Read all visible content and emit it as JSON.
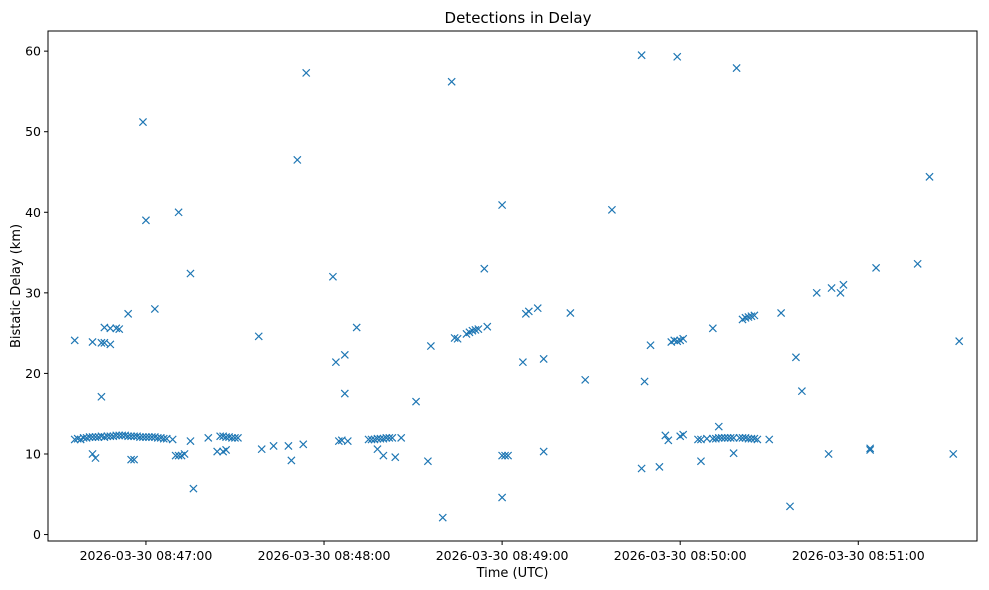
{
  "chart_data": {
    "type": "scatter",
    "title": "Detections in Delay",
    "xlabel": "Time (UTC)",
    "ylabel": "Bistatic Delay (km)",
    "x_tick_labels": [
      "2026-03-30 08:47:00",
      "2026-03-30 08:48:00",
      "2026-03-30 08:49:00",
      "2026-03-30 08:50:00",
      "2026-03-30 08:51:00"
    ],
    "y_ticks": [
      0,
      10,
      20,
      30,
      40,
      50,
      60
    ],
    "xlim": [
      "2026-03-30 08:46:27",
      "2026-03-30 08:51:40"
    ],
    "ylim": [
      -0.8,
      62.5
    ],
    "marker": "x",
    "color": "#1f77b4",
    "grid": false,
    "series": [
      {
        "points": [
          [
            "2026-03-30 08:46:36",
            24.1
          ],
          [
            "2026-03-30 08:46:36",
            11.8
          ],
          [
            "2026-03-30 08:46:37",
            11.9
          ],
          [
            "2026-03-30 08:46:38",
            11.8
          ],
          [
            "2026-03-30 08:46:39",
            12.0
          ],
          [
            "2026-03-30 08:46:40",
            12.0
          ],
          [
            "2026-03-30 08:46:41",
            12.1
          ],
          [
            "2026-03-30 08:46:42",
            23.9
          ],
          [
            "2026-03-30 08:46:42",
            10.0
          ],
          [
            "2026-03-30 08:46:42",
            12.1
          ],
          [
            "2026-03-30 08:46:43",
            9.5
          ],
          [
            "2026-03-30 08:46:43",
            12.1
          ],
          [
            "2026-03-30 08:46:44",
            12.1
          ],
          [
            "2026-03-30 08:46:45",
            23.8
          ],
          [
            "2026-03-30 08:46:45",
            17.1
          ],
          [
            "2026-03-30 08:46:45",
            12.2
          ],
          [
            "2026-03-30 08:46:46",
            25.7
          ],
          [
            "2026-03-30 08:46:46",
            23.8
          ],
          [
            "2026-03-30 08:46:46",
            12.1
          ],
          [
            "2026-03-30 08:46:47",
            12.2
          ],
          [
            "2026-03-30 08:46:48",
            25.6
          ],
          [
            "2026-03-30 08:46:48",
            23.6
          ],
          [
            "2026-03-30 08:46:48",
            12.2
          ],
          [
            "2026-03-30 08:46:49",
            12.2
          ],
          [
            "2026-03-30 08:46:50",
            25.6
          ],
          [
            "2026-03-30 08:46:50",
            12.3
          ],
          [
            "2026-03-30 08:46:51",
            25.5
          ],
          [
            "2026-03-30 08:46:51",
            12.3
          ],
          [
            "2026-03-30 08:46:52",
            12.3
          ],
          [
            "2026-03-30 08:46:53",
            12.3
          ],
          [
            "2026-03-30 08:46:54",
            27.4
          ],
          [
            "2026-03-30 08:46:54",
            12.2
          ],
          [
            "2026-03-30 08:46:55",
            9.3
          ],
          [
            "2026-03-30 08:46:55",
            12.2
          ],
          [
            "2026-03-30 08:46:56",
            9.3
          ],
          [
            "2026-03-30 08:46:56",
            12.2
          ],
          [
            "2026-03-30 08:46:57",
            12.2
          ],
          [
            "2026-03-30 08:46:58",
            12.1
          ],
          [
            "2026-03-30 08:46:59",
            51.2
          ],
          [
            "2026-03-30 08:46:59",
            12.1
          ],
          [
            "2026-03-30 08:47:00",
            39.0
          ],
          [
            "2026-03-30 08:47:00",
            12.1
          ],
          [
            "2026-03-30 08:47:01",
            12.1
          ],
          [
            "2026-03-30 08:47:02",
            12.1
          ],
          [
            "2026-03-30 08:47:03",
            28.0
          ],
          [
            "2026-03-30 08:47:03",
            12.1
          ],
          [
            "2026-03-30 08:47:04",
            12.0
          ],
          [
            "2026-03-30 08:47:05",
            12.0
          ],
          [
            "2026-03-30 08:47:06",
            11.9
          ],
          [
            "2026-03-30 08:47:07",
            11.9
          ],
          [
            "2026-03-30 08:47:09",
            11.8
          ],
          [
            "2026-03-30 08:47:10",
            9.8
          ],
          [
            "2026-03-30 08:47:11",
            40.0
          ],
          [
            "2026-03-30 08:47:11",
            9.8
          ],
          [
            "2026-03-30 08:47:12",
            9.8
          ],
          [
            "2026-03-30 08:47:13",
            10.0
          ],
          [
            "2026-03-30 08:47:15",
            32.4
          ],
          [
            "2026-03-30 08:47:15",
            11.6
          ],
          [
            "2026-03-30 08:47:16",
            5.7
          ],
          [
            "2026-03-30 08:47:21",
            12.0
          ],
          [
            "2026-03-30 08:47:24",
            10.3
          ],
          [
            "2026-03-30 08:47:25",
            12.2
          ],
          [
            "2026-03-30 08:47:26",
            10.3
          ],
          [
            "2026-03-30 08:47:26",
            12.2
          ],
          [
            "2026-03-30 08:47:27",
            10.5
          ],
          [
            "2026-03-30 08:47:27",
            12.1
          ],
          [
            "2026-03-30 08:47:28",
            12.1
          ],
          [
            "2026-03-30 08:47:29",
            12.0
          ],
          [
            "2026-03-30 08:47:30",
            12.0
          ],
          [
            "2026-03-30 08:47:31",
            12.0
          ],
          [
            "2026-03-30 08:47:38",
            24.6
          ],
          [
            "2026-03-30 08:47:39",
            10.6
          ],
          [
            "2026-03-30 08:47:43",
            11.0
          ],
          [
            "2026-03-30 08:47:48",
            11.0
          ],
          [
            "2026-03-30 08:47:49",
            9.2
          ],
          [
            "2026-03-30 08:47:51",
            46.5
          ],
          [
            "2026-03-30 08:47:53",
            11.2
          ],
          [
            "2026-03-30 08:47:54",
            57.3
          ],
          [
            "2026-03-30 08:48:03",
            32.0
          ],
          [
            "2026-03-30 08:48:04",
            21.4
          ],
          [
            "2026-03-30 08:48:05",
            11.6
          ],
          [
            "2026-03-30 08:48:06",
            11.7
          ],
          [
            "2026-03-30 08:48:07",
            22.3
          ],
          [
            "2026-03-30 08:48:07",
            17.5
          ],
          [
            "2026-03-30 08:48:08",
            11.6
          ],
          [
            "2026-03-30 08:48:11",
            25.7
          ],
          [
            "2026-03-30 08:48:15",
            11.8
          ],
          [
            "2026-03-30 08:48:16",
            11.8
          ],
          [
            "2026-03-30 08:48:17",
            11.8
          ],
          [
            "2026-03-30 08:48:18",
            10.6
          ],
          [
            "2026-03-30 08:48:18",
            11.9
          ],
          [
            "2026-03-30 08:48:19",
            11.9
          ],
          [
            "2026-03-30 08:48:20",
            9.8
          ],
          [
            "2026-03-30 08:48:20",
            11.9
          ],
          [
            "2026-03-30 08:48:21",
            12.0
          ],
          [
            "2026-03-30 08:48:22",
            12.0
          ],
          [
            "2026-03-30 08:48:23",
            12.0
          ],
          [
            "2026-03-30 08:48:24",
            9.6
          ],
          [
            "2026-03-30 08:48:26",
            12.0
          ],
          [
            "2026-03-30 08:48:31",
            16.5
          ],
          [
            "2026-03-30 08:48:35",
            9.1
          ],
          [
            "2026-03-30 08:48:36",
            23.4
          ],
          [
            "2026-03-30 08:48:40",
            2.1
          ],
          [
            "2026-03-30 08:48:43",
            56.2
          ],
          [
            "2026-03-30 08:48:44",
            24.4
          ],
          [
            "2026-03-30 08:48:45",
            24.3
          ],
          [
            "2026-03-30 08:48:48",
            24.9
          ],
          [
            "2026-03-30 08:48:49",
            25.1
          ],
          [
            "2026-03-30 08:48:50",
            25.3
          ],
          [
            "2026-03-30 08:48:51",
            25.4
          ],
          [
            "2026-03-30 08:48:52",
            25.5
          ],
          [
            "2026-03-30 08:48:54",
            33.0
          ],
          [
            "2026-03-30 08:48:55",
            25.8
          ],
          [
            "2026-03-30 08:49:00",
            40.9
          ],
          [
            "2026-03-30 08:49:00",
            9.8
          ],
          [
            "2026-03-30 08:49:00",
            4.6
          ],
          [
            "2026-03-30 08:49:01",
            9.8
          ],
          [
            "2026-03-30 08:49:02",
            9.8
          ],
          [
            "2026-03-30 08:49:07",
            21.4
          ],
          [
            "2026-03-30 08:49:08",
            27.4
          ],
          [
            "2026-03-30 08:49:09",
            27.7
          ],
          [
            "2026-03-30 08:49:12",
            28.1
          ],
          [
            "2026-03-30 08:49:14",
            21.8
          ],
          [
            "2026-03-30 08:49:14",
            10.3
          ],
          [
            "2026-03-30 08:49:23",
            27.5
          ],
          [
            "2026-03-30 08:49:28",
            19.2
          ],
          [
            "2026-03-30 08:49:37",
            40.3
          ],
          [
            "2026-03-30 08:49:47",
            59.5
          ],
          [
            "2026-03-30 08:49:47",
            8.2
          ],
          [
            "2026-03-30 08:49:48",
            19.0
          ],
          [
            "2026-03-30 08:49:50",
            23.5
          ],
          [
            "2026-03-30 08:49:53",
            8.4
          ],
          [
            "2026-03-30 08:49:55",
            12.3
          ],
          [
            "2026-03-30 08:49:56",
            11.7
          ],
          [
            "2026-03-30 08:49:57",
            23.9
          ],
          [
            "2026-03-30 08:49:58",
            24.1
          ],
          [
            "2026-03-30 08:49:59",
            59.3
          ],
          [
            "2026-03-30 08:49:59",
            24.0
          ],
          [
            "2026-03-30 08:50:00",
            24.1
          ],
          [
            "2026-03-30 08:50:00",
            12.2
          ],
          [
            "2026-03-30 08:50:01",
            24.3
          ],
          [
            "2026-03-30 08:50:01",
            12.4
          ],
          [
            "2026-03-30 08:50:06",
            11.8
          ],
          [
            "2026-03-30 08:50:07",
            9.1
          ],
          [
            "2026-03-30 08:50:07",
            11.8
          ],
          [
            "2026-03-30 08:50:09",
            11.9
          ],
          [
            "2026-03-30 08:50:11",
            25.6
          ],
          [
            "2026-03-30 08:50:11",
            11.9
          ],
          [
            "2026-03-30 08:50:12",
            11.9
          ],
          [
            "2026-03-30 08:50:13",
            13.4
          ],
          [
            "2026-03-30 08:50:13",
            12.0
          ],
          [
            "2026-03-30 08:50:14",
            12.0
          ],
          [
            "2026-03-30 08:50:15",
            12.0
          ],
          [
            "2026-03-30 08:50:16",
            12.0
          ],
          [
            "2026-03-30 08:50:17",
            12.0
          ],
          [
            "2026-03-30 08:50:18",
            10.1
          ],
          [
            "2026-03-30 08:50:18",
            12.0
          ],
          [
            "2026-03-30 08:50:19",
            57.9
          ],
          [
            "2026-03-30 08:50:20",
            12.0
          ],
          [
            "2026-03-30 08:50:21",
            26.7
          ],
          [
            "2026-03-30 08:50:21",
            12.0
          ],
          [
            "2026-03-30 08:50:22",
            26.9
          ],
          [
            "2026-03-30 08:50:22",
            12.0
          ],
          [
            "2026-03-30 08:50:23",
            27.0
          ],
          [
            "2026-03-30 08:50:23",
            11.9
          ],
          [
            "2026-03-30 08:50:24",
            27.1
          ],
          [
            "2026-03-30 08:50:24",
            11.9
          ],
          [
            "2026-03-30 08:50:25",
            27.2
          ],
          [
            "2026-03-30 08:50:25",
            11.9
          ],
          [
            "2026-03-30 08:50:26",
            11.8
          ],
          [
            "2026-03-30 08:50:30",
            11.8
          ],
          [
            "2026-03-30 08:50:34",
            27.5
          ],
          [
            "2026-03-30 08:50:37",
            3.5
          ],
          [
            "2026-03-30 08:50:39",
            22.0
          ],
          [
            "2026-03-30 08:50:41",
            17.8
          ],
          [
            "2026-03-30 08:50:46",
            30.0
          ],
          [
            "2026-03-30 08:50:50",
            10.0
          ],
          [
            "2026-03-30 08:50:51",
            30.6
          ],
          [
            "2026-03-30 08:50:54",
            30.0
          ],
          [
            "2026-03-30 08:50:55",
            31.0
          ],
          [
            "2026-03-30 08:51:04",
            10.7
          ],
          [
            "2026-03-30 08:51:04",
            10.5
          ],
          [
            "2026-03-30 08:51:06",
            33.1
          ],
          [
            "2026-03-30 08:51:20",
            33.6
          ],
          [
            "2026-03-30 08:51:24",
            44.4
          ],
          [
            "2026-03-30 08:51:32",
            10.0
          ],
          [
            "2026-03-30 08:51:34",
            24.0
          ]
        ]
      }
    ]
  }
}
